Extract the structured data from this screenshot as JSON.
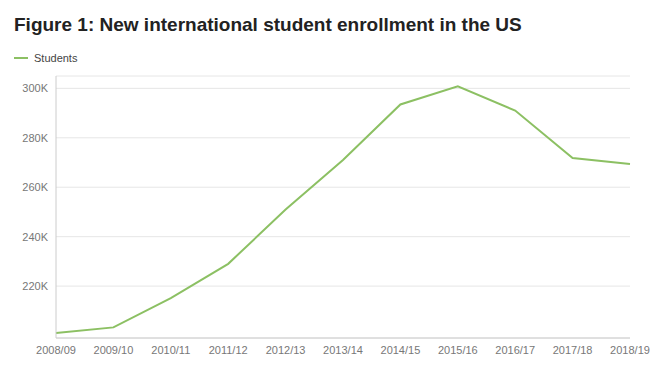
{
  "chart_data": {
    "type": "line",
    "title": "Figure 1: New international student enrollment in the US",
    "categories": [
      "2008/09",
      "2009/10",
      "2010/11",
      "2011/12",
      "2012/13",
      "2013/14",
      "2014/15",
      "2015/16",
      "2016/17",
      "2017/18",
      "2018/19"
    ],
    "series": [
      {
        "name": "Students",
        "color": "#8cc063",
        "values": [
          201000,
          203300,
          215100,
          229000,
          251000,
          271000,
          293500,
          300800,
          291000,
          271800,
          269400
        ]
      }
    ],
    "ylim": [
      199000,
      305000
    ],
    "yticks": [
      {
        "value": 220000,
        "label": "220K"
      },
      {
        "value": 240000,
        "label": "240K"
      },
      {
        "value": 260000,
        "label": "260K"
      },
      {
        "value": 280000,
        "label": "280K"
      },
      {
        "value": 300000,
        "label": "300K"
      }
    ],
    "grid": true,
    "legend": "top-left"
  }
}
